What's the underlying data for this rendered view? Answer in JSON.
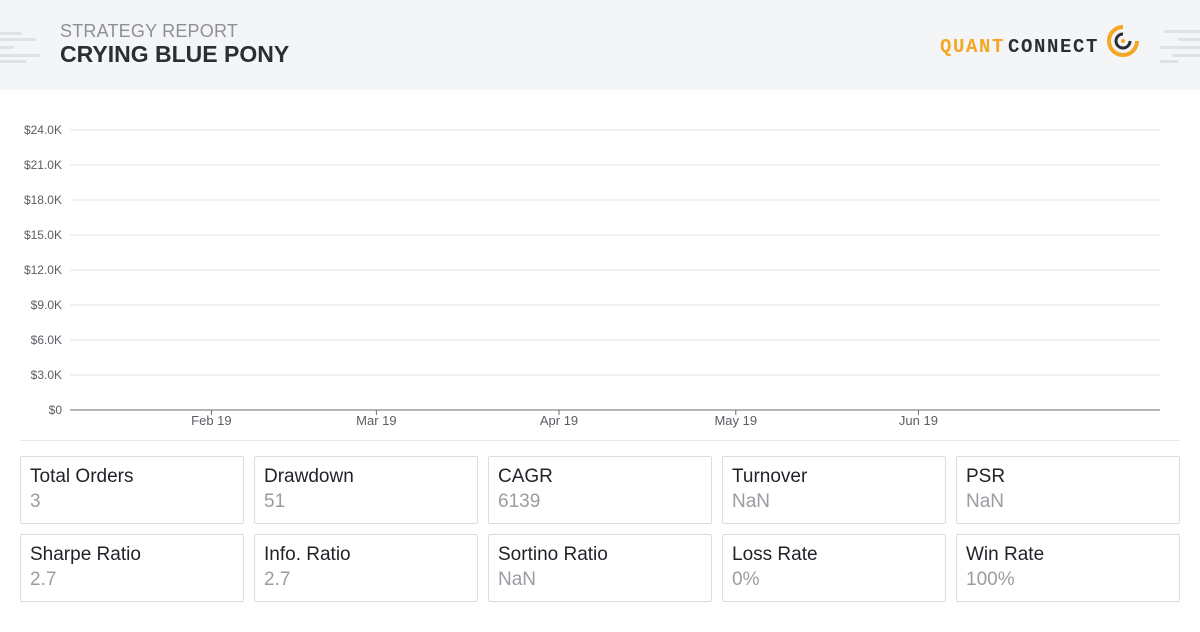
{
  "header": {
    "subtitle": "STRATEGY REPORT",
    "title": "CRYING BLUE PONY",
    "logo": {
      "part1": "QUANT",
      "part2": "CONNECT",
      "accent_color": "#f5a623",
      "dark_color": "#2b2e33",
      "mark_icon": "quantconnect-logo-mark-icon"
    }
  },
  "chart_data": {
    "type": "line",
    "title": "",
    "xlabel": "",
    "ylabel": "",
    "ylim": [
      0,
      24000
    ],
    "y_ticks": [
      {
        "value": 24000,
        "label": "$24.0K"
      },
      {
        "value": 21000,
        "label": "$21.0K"
      },
      {
        "value": 18000,
        "label": "$18.0K"
      },
      {
        "value": 15000,
        "label": "$15.0K"
      },
      {
        "value": 12000,
        "label": "$12.0K"
      },
      {
        "value": 9000,
        "label": "$9.0K"
      },
      {
        "value": 6000,
        "label": "$6.0K"
      },
      {
        "value": 3000,
        "label": "$3.0K"
      },
      {
        "value": 0,
        "label": "$0"
      }
    ],
    "x_range": [
      "2019-01-08",
      "2019-07-12"
    ],
    "x_ticks": [
      {
        "date": "2019-02-01",
        "label": "Feb 19"
      },
      {
        "date": "2019-03-01",
        "label": "Mar 19"
      },
      {
        "date": "2019-04-01",
        "label": "Apr 19"
      },
      {
        "date": "2019-05-01",
        "label": "May 19"
      },
      {
        "date": "2019-06-01",
        "label": "Jun 19"
      }
    ],
    "grid": true,
    "series": []
  },
  "stats": [
    {
      "label": "Total Orders",
      "value": "3"
    },
    {
      "label": "Drawdown",
      "value": "51"
    },
    {
      "label": "CAGR",
      "value": "6139"
    },
    {
      "label": "Turnover",
      "value": "NaN"
    },
    {
      "label": "PSR",
      "value": "NaN"
    },
    {
      "label": "Sharpe Ratio",
      "value": "2.7"
    },
    {
      "label": "Info. Ratio",
      "value": "2.7"
    },
    {
      "label": "Sortino Ratio",
      "value": "NaN"
    },
    {
      "label": "Loss Rate",
      "value": "0%"
    },
    {
      "label": "Win Rate",
      "value": "100%"
    }
  ]
}
